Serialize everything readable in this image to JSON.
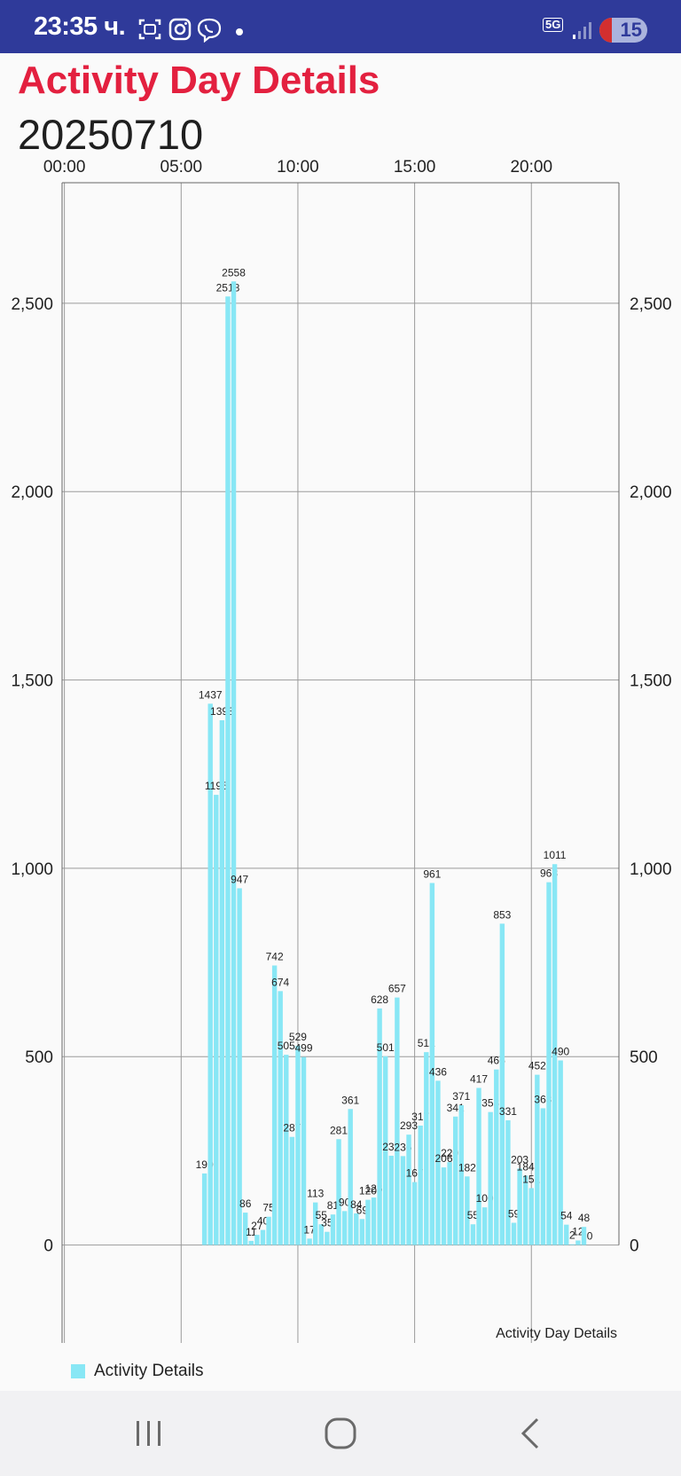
{
  "status_bar": {
    "time": "23:35 ч.",
    "network": "5G",
    "battery": "15",
    "icons": [
      "screenshot-icon",
      "instagram-icon",
      "viber-icon",
      "notification-dot",
      "signal-icon",
      "battery-icon"
    ]
  },
  "page": {
    "title": "Activity Day Details",
    "date": "20250710"
  },
  "colors": {
    "title": "#e3203f",
    "bar": "#88e7f5",
    "grid": "#9a9a9a",
    "status_bar": "#2f3a9a"
  },
  "chart_data": {
    "type": "bar",
    "description": "Activity Day Details",
    "x_unit": "hour of day",
    "x_ticks": [
      "00:00",
      "05:00",
      "10:00",
      "15:00",
      "20:00"
    ],
    "x_tick_values": [
      0,
      5,
      10,
      15,
      20
    ],
    "xlim": [
      -0.1,
      23.75
    ],
    "ylim": [
      -260,
      2820
    ],
    "y_ticks": [
      0,
      500,
      1000,
      1500,
      2000,
      2500
    ],
    "y_tick_labels": [
      "0",
      "500",
      "1,000",
      "1,500",
      "2,000",
      "2,500"
    ],
    "grid": true,
    "legend_position": "bottom-left",
    "series": [
      {
        "name": "Activity Details",
        "x": [
          6.0,
          6.25,
          6.5,
          6.75,
          7.0,
          7.25,
          7.5,
          7.75,
          8.0,
          8.25,
          8.5,
          8.75,
          9.0,
          9.25,
          9.5,
          9.75,
          10.0,
          10.25,
          10.5,
          10.75,
          11.0,
          11.25,
          11.5,
          11.75,
          12.0,
          12.25,
          12.5,
          12.75,
          13.0,
          13.25,
          13.5,
          13.75,
          14.0,
          14.25,
          14.5,
          14.75,
          15.0,
          15.25,
          15.5,
          15.75,
          16.0,
          16.25,
          16.5,
          16.75,
          17.0,
          17.25,
          17.5,
          17.75,
          18.0,
          18.25,
          18.5,
          18.75,
          19.0,
          19.25,
          19.5,
          19.75,
          20.0,
          20.25,
          20.5,
          20.75,
          21.0,
          21.25,
          21.5,
          21.75,
          22.0,
          22.25,
          22.5
        ],
        "values": [
          190,
          1437,
          1195,
          1393,
          2518,
          2558,
          947,
          86,
          11,
          27,
          40,
          75,
          742,
          674,
          505,
          287,
          529,
          499,
          17,
          113,
          55,
          35,
          81,
          281,
          90,
          361,
          84,
          69,
          120,
          126,
          628,
          501,
          237,
          657,
          236,
          293,
          167,
          317,
          512,
          961,
          436,
          206,
          220,
          341,
          371,
          182,
          55,
          417,
          100,
          353,
          466,
          853,
          331,
          59,
          203,
          184,
          151,
          452,
          363,
          963,
          1011,
          490,
          54,
          2,
          12,
          48,
          0
        ]
      }
    ]
  }
}
